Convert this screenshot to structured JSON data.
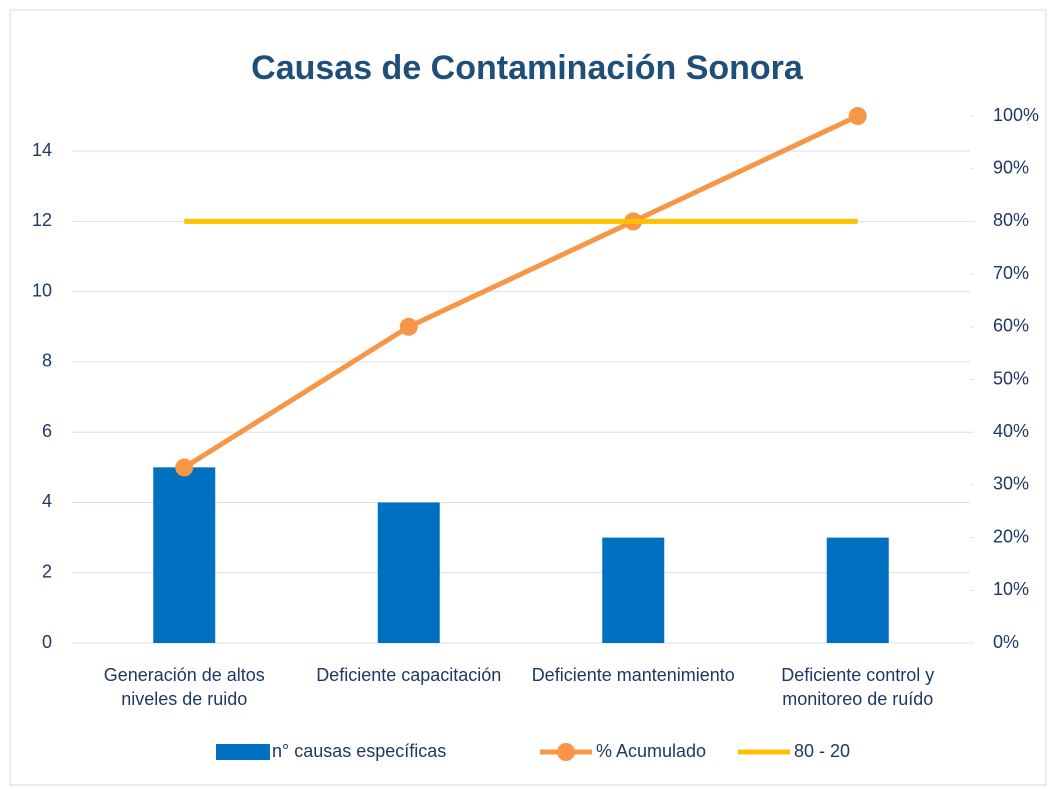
{
  "chart_data": {
    "type": "pareto",
    "title": "Causas de Contaminación Sonora",
    "categories": [
      "Generación de altos niveles de ruido",
      "Deficiente capacitación",
      "Deficiente mantenimiento",
      "Deficiente control y monitoreo de ruído"
    ],
    "series": [
      {
        "name": "n° causas específicas",
        "type": "bar",
        "color": "#0070c0",
        "values": [
          5,
          4,
          3,
          3
        ]
      },
      {
        "name": "% Acumulado",
        "type": "line",
        "axis": "y2",
        "color": "#f79646",
        "marker": true,
        "values": [
          33.3,
          60,
          80,
          100
        ]
      },
      {
        "name": "80 - 20",
        "type": "line",
        "axis": "y2",
        "color": "#ffc000",
        "marker": false,
        "values": [
          80,
          80,
          80,
          80
        ]
      }
    ],
    "ylim": [
      0,
      15
    ],
    "yticks": [
      0,
      2,
      4,
      6,
      8,
      10,
      12,
      14
    ],
    "y2lim": [
      0,
      100
    ],
    "y2ticks": [
      {
        "value": 0,
        "label": "0%"
      },
      {
        "value": 10,
        "label": "10%"
      },
      {
        "value": 20,
        "label": "20%"
      },
      {
        "value": 30,
        "label": "30%"
      },
      {
        "value": 40,
        "label": "40%"
      },
      {
        "value": 50,
        "label": "50%"
      },
      {
        "value": 60,
        "label": "60%"
      },
      {
        "value": 70,
        "label": "70%"
      },
      {
        "value": 80,
        "label": "80%"
      },
      {
        "value": 90,
        "label": "90%"
      },
      {
        "value": 100,
        "label": "100%"
      }
    ],
    "grid": true,
    "legend": "bottom"
  }
}
